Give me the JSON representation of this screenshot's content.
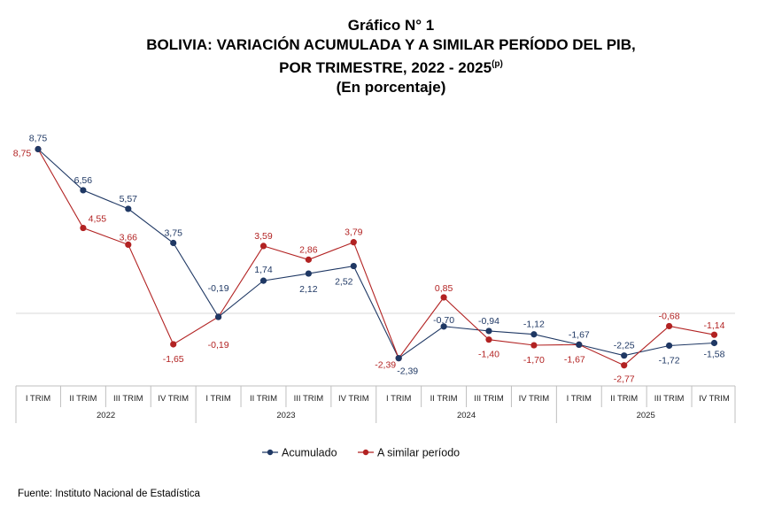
{
  "header": {
    "title": "Gráfico N° 1",
    "subtitle_line1": "BOLIVIA: VARIACIÓN ACUMULADA Y A SIMILAR PERÍODO DEL PIB,",
    "subtitle_line2": "POR TRIMESTRE, 2022 - 2025",
    "subtitle_sup": "(p)",
    "unit": "(En porcentaje)"
  },
  "source": "Fuente: Instituto Nacional de Estadística",
  "colors": {
    "acumulado": "#1f3864",
    "similar": "#b22222",
    "zero_line": "#d9d9d9",
    "axis": "#bfbfbf"
  },
  "chart_data": {
    "type": "line",
    "years": [
      "2022",
      "2023",
      "2024",
      "2025"
    ],
    "categories": [
      "I TRIM",
      "II TRIM",
      "III TRIM",
      "IV TRIM",
      "I TRIM",
      "II TRIM",
      "III TRIM",
      "IV TRIM",
      "I TRIM",
      "II TRIM",
      "III TRIM",
      "IV TRIM",
      "I TRIM",
      "II TRIM",
      "III TRIM",
      "IV TRIM"
    ],
    "series": [
      {
        "name": "Acumulado",
        "values": [
          8.75,
          6.56,
          5.57,
          3.75,
          -0.19,
          1.74,
          2.12,
          2.52,
          -2.39,
          -0.7,
          -0.94,
          -1.12,
          -1.67,
          -2.25,
          -1.72,
          -1.58
        ],
        "labels": [
          "8,75",
          "6,56",
          "5,57",
          "3,75",
          "-0,19",
          "1,74",
          "2,12",
          "2,52",
          "-2,39",
          "-0,70",
          "-0,94",
          "-1,12",
          "-1,67",
          "-2,25",
          "-1,72",
          "-1,58"
        ]
      },
      {
        "name": "A similar período",
        "values": [
          8.75,
          4.55,
          3.66,
          -1.65,
          -0.19,
          3.59,
          2.86,
          3.79,
          -2.39,
          0.85,
          -1.4,
          -1.7,
          -1.67,
          -2.77,
          -0.68,
          -1.14
        ],
        "labels": [
          "8,75",
          "4,55",
          "3,66",
          "-1,65",
          "-0,19",
          "3,59",
          "2,86",
          "3,79",
          "-2,39",
          "0,85",
          "-1,40",
          "-1,70",
          "-1,67",
          "-2,77",
          "-0,68",
          "-1,14"
        ]
      }
    ],
    "legend_position": "bottom",
    "grid": false
  }
}
